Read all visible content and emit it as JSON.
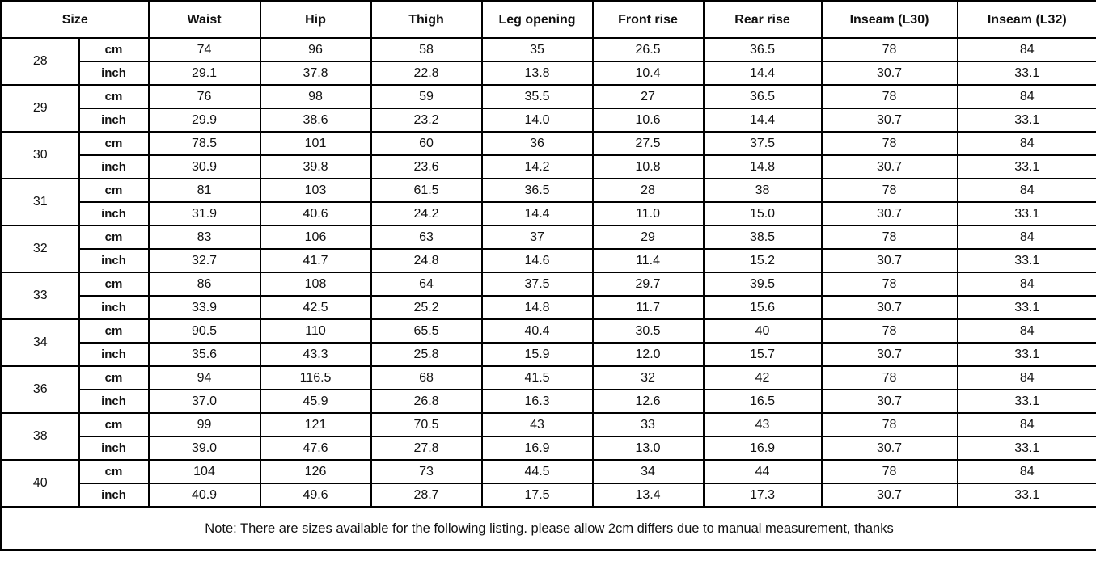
{
  "table": {
    "headers": [
      "Size",
      "Waist",
      "Hip",
      "Thigh",
      "Leg opening",
      "Front rise",
      "Rear rise",
      "Inseam (L30)",
      "Inseam (L32)"
    ],
    "unit_labels": [
      "cm",
      "inch"
    ],
    "groups": [
      {
        "size": "28",
        "cm": [
          "74",
          "96",
          "58",
          "35",
          "26.5",
          "36.5",
          "78",
          "84"
        ],
        "inch": [
          "29.1",
          "37.8",
          "22.8",
          "13.8",
          "10.4",
          "14.4",
          "30.7",
          "33.1"
        ]
      },
      {
        "size": "29",
        "cm": [
          "76",
          "98",
          "59",
          "35.5",
          "27",
          "36.5",
          "78",
          "84"
        ],
        "inch": [
          "29.9",
          "38.6",
          "23.2",
          "14.0",
          "10.6",
          "14.4",
          "30.7",
          "33.1"
        ]
      },
      {
        "size": "30",
        "cm": [
          "78.5",
          "101",
          "60",
          "36",
          "27.5",
          "37.5",
          "78",
          "84"
        ],
        "inch": [
          "30.9",
          "39.8",
          "23.6",
          "14.2",
          "10.8",
          "14.8",
          "30.7",
          "33.1"
        ]
      },
      {
        "size": "31",
        "cm": [
          "81",
          "103",
          "61.5",
          "36.5",
          "28",
          "38",
          "78",
          "84"
        ],
        "inch": [
          "31.9",
          "40.6",
          "24.2",
          "14.4",
          "11.0",
          "15.0",
          "30.7",
          "33.1"
        ]
      },
      {
        "size": "32",
        "cm": [
          "83",
          "106",
          "63",
          "37",
          "29",
          "38.5",
          "78",
          "84"
        ],
        "inch": [
          "32.7",
          "41.7",
          "24.8",
          "14.6",
          "11.4",
          "15.2",
          "30.7",
          "33.1"
        ]
      },
      {
        "size": "33",
        "cm": [
          "86",
          "108",
          "64",
          "37.5",
          "29.7",
          "39.5",
          "78",
          "84"
        ],
        "inch": [
          "33.9",
          "42.5",
          "25.2",
          "14.8",
          "11.7",
          "15.6",
          "30.7",
          "33.1"
        ]
      },
      {
        "size": "34",
        "cm": [
          "90.5",
          "110",
          "65.5",
          "40.4",
          "30.5",
          "40",
          "78",
          "84"
        ],
        "inch": [
          "35.6",
          "43.3",
          "25.8",
          "15.9",
          "12.0",
          "15.7",
          "30.7",
          "33.1"
        ]
      },
      {
        "size": "36",
        "cm": [
          "94",
          "116.5",
          "68",
          "41.5",
          "32",
          "42",
          "78",
          "84"
        ],
        "inch": [
          "37.0",
          "45.9",
          "26.8",
          "16.3",
          "12.6",
          "16.5",
          "30.7",
          "33.1"
        ]
      },
      {
        "size": "38",
        "cm": [
          "99",
          "121",
          "70.5",
          "43",
          "33",
          "43",
          "78",
          "84"
        ],
        "inch": [
          "39.0",
          "47.6",
          "27.8",
          "16.9",
          "13.0",
          "16.9",
          "30.7",
          "33.1"
        ]
      },
      {
        "size": "40",
        "cm": [
          "104",
          "126",
          "73",
          "44.5",
          "34",
          "44",
          "78",
          "84"
        ],
        "inch": [
          "40.9",
          "49.6",
          "28.7",
          "17.5",
          "13.4",
          "17.3",
          "30.7",
          "33.1"
        ]
      }
    ]
  },
  "note": "Note: There are sizes available for the following listing. please allow 2cm differs due to manual measurement, thanks",
  "colors": {
    "border": "#000000",
    "text": "#111111",
    "background": "#ffffff"
  }
}
